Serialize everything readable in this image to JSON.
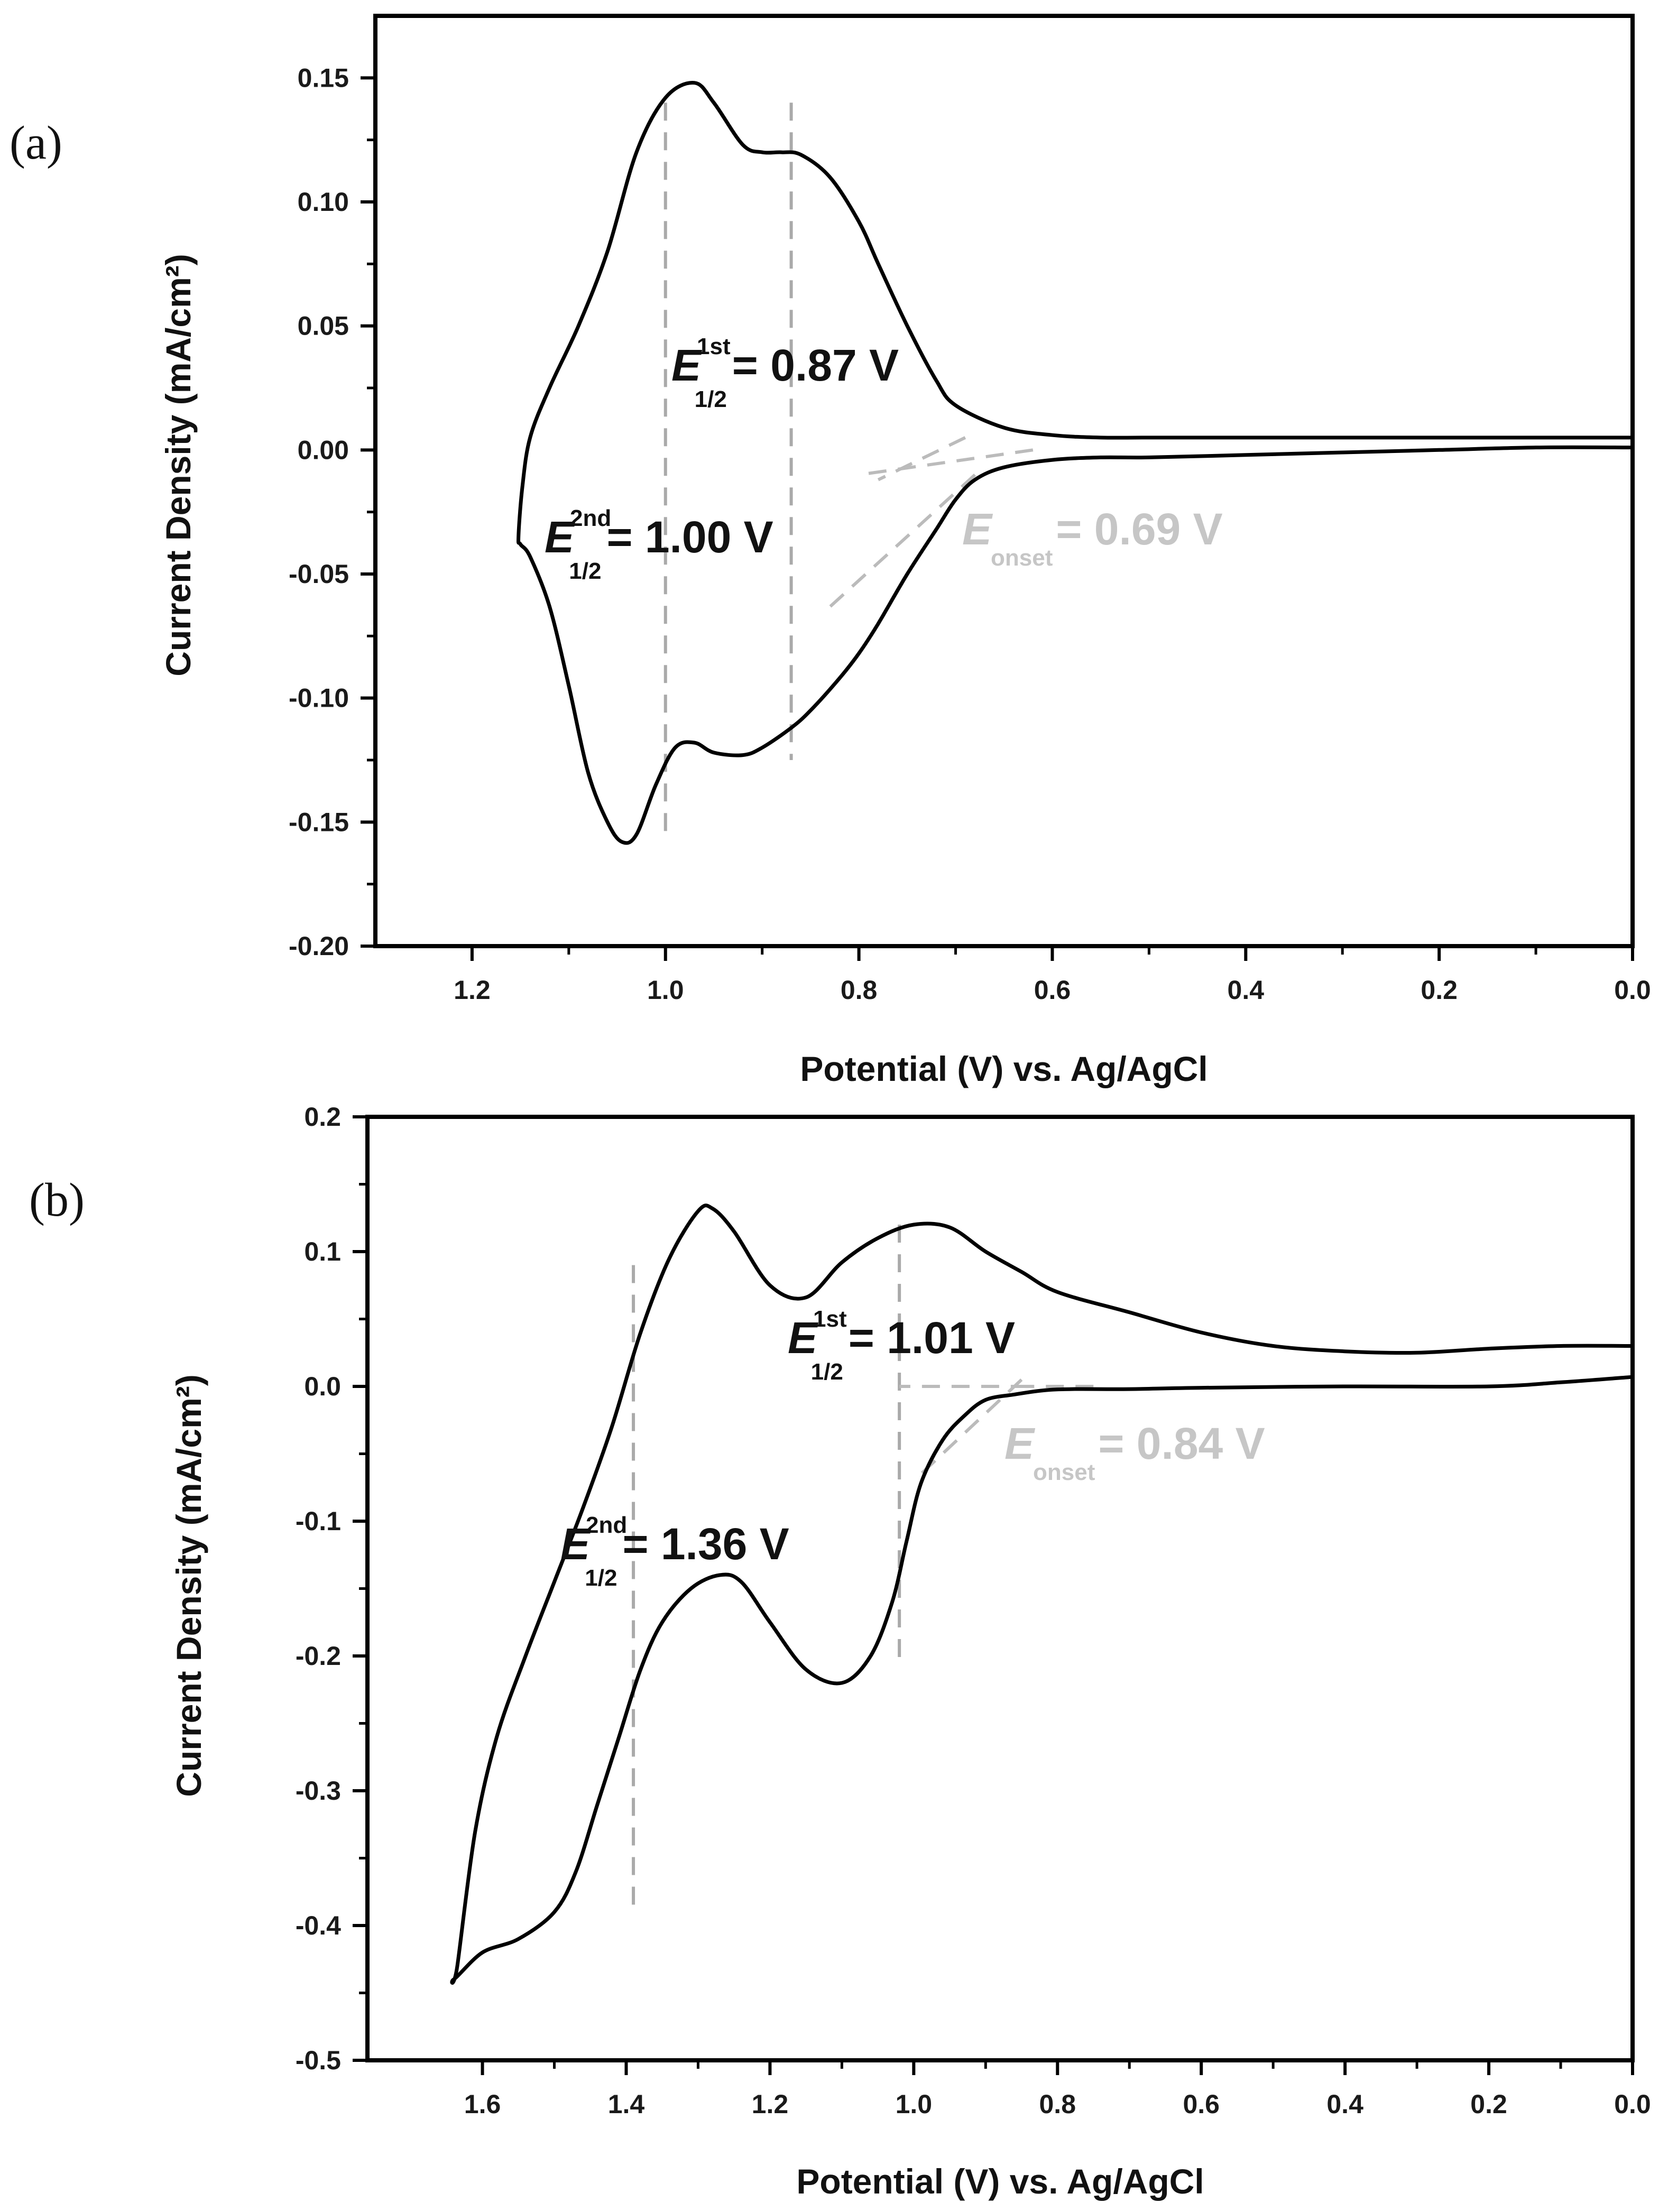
{
  "chart_data": [
    {
      "panel": "(a)",
      "type": "line",
      "xlabel": "Potential (V) vs. Ag/AgCl",
      "ylabel": "Current Density (mA/cm²)",
      "xlim": [
        1.3,
        0.0
      ],
      "ylim": [
        -0.2,
        0.175
      ],
      "xticks": [
        "1.2",
        "1.0",
        "0.8",
        "0.6",
        "0.4",
        "0.2",
        "0.0"
      ],
      "xtick_values": [
        1.2,
        1.0,
        0.8,
        0.6,
        0.4,
        0.2,
        0.0
      ],
      "yticks": [
        "0.15",
        "0.10",
        "0.05",
        "0.00",
        "-0.05",
        "-0.10",
        "-0.15",
        "-0.20"
      ],
      "ytick_values": [
        0.15,
        0.1,
        0.05,
        0.0,
        -0.05,
        -0.1,
        -0.15,
        -0.2
      ],
      "series": [
        {
          "x": [
            0.0,
            0.2,
            0.4,
            0.5,
            0.55,
            0.6,
            0.65,
            0.7,
            0.72,
            0.75,
            0.78,
            0.8,
            0.83,
            0.86,
            0.88,
            0.9,
            0.92,
            0.95,
            0.97,
            1.0,
            1.03,
            1.06,
            1.09,
            1.12,
            1.14,
            1.148,
            1.152,
            1.15,
            1.14,
            1.12,
            1.1,
            1.08,
            1.06,
            1.045,
            1.03,
            1.01,
            0.99,
            0.97,
            0.95,
            0.92,
            0.9,
            0.87,
            0.85,
            0.82,
            0.8,
            0.78,
            0.75,
            0.72,
            0.7,
            0.68,
            0.65,
            0.6,
            0.55,
            0.5,
            0.4,
            0.3,
            0.2,
            0.1,
            0.0
          ],
          "y": [
            0.005,
            0.005,
            0.005,
            0.005,
            0.005,
            0.006,
            0.009,
            0.018,
            0.028,
            0.05,
            0.075,
            0.092,
            0.11,
            0.119,
            0.12,
            0.12,
            0.123,
            0.14,
            0.148,
            0.142,
            0.12,
            0.08,
            0.05,
            0.025,
            0.005,
            -0.015,
            -0.035,
            -0.038,
            -0.043,
            -0.063,
            -0.095,
            -0.13,
            -0.15,
            -0.158,
            -0.155,
            -0.135,
            -0.12,
            -0.118,
            -0.122,
            -0.123,
            -0.12,
            -0.112,
            -0.105,
            -0.092,
            -0.082,
            -0.07,
            -0.05,
            -0.032,
            -0.02,
            -0.012,
            -0.007,
            -0.004,
            -0.003,
            -0.003,
            -0.002,
            -0.001,
            0.0,
            0.001,
            0.001
          ]
        }
      ],
      "annotations": {
        "first": {
          "sup": "1st",
          "sub": "1/2",
          "text": "= 0.87 V",
          "x": 0.87
        },
        "second": {
          "sup": "2nd",
          "sub": "1/2",
          "text": "= 1.00 V",
          "x": 1.0
        },
        "onset": {
          "sub": "onset",
          "text": "= 0.69 V",
          "x": 0.69
        }
      }
    },
    {
      "panel": "(b)",
      "type": "line",
      "xlabel": "Potential (V) vs. Ag/AgCl",
      "ylabel": "Current Density (mA/cm²)",
      "xlim": [
        1.76,
        0.0
      ],
      "ylim": [
        -0.5,
        0.2
      ],
      "xticks": [
        "1.6",
        "1.4",
        "1.2",
        "1.0",
        "0.8",
        "0.6",
        "0.4",
        "0.2",
        "0.0"
      ],
      "xtick_values": [
        1.6,
        1.4,
        1.2,
        1.0,
        0.8,
        0.6,
        0.4,
        0.2,
        0.0
      ],
      "yticks": [
        "0.2",
        "0.1",
        "0.0",
        "-0.1",
        "-0.2",
        "-0.3",
        "-0.4",
        "-0.5"
      ],
      "ytick_values": [
        0.2,
        0.1,
        0.0,
        -0.1,
        -0.2,
        -0.3,
        -0.4,
        -0.5
      ],
      "series": [
        {
          "x": [
            0.0,
            0.1,
            0.2,
            0.3,
            0.4,
            0.5,
            0.6,
            0.7,
            0.8,
            0.85,
            0.9,
            0.95,
            1.0,
            1.05,
            1.1,
            1.15,
            1.2,
            1.25,
            1.28,
            1.3,
            1.34,
            1.38,
            1.42,
            1.46,
            1.5,
            1.54,
            1.58,
            1.61,
            1.635,
            1.64,
            1.6,
            1.55,
            1.5,
            1.47,
            1.44,
            1.41,
            1.38,
            1.35,
            1.31,
            1.27,
            1.24,
            1.2,
            1.15,
            1.1,
            1.06,
            1.03,
            1.01,
            0.99,
            0.96,
            0.93,
            0.9,
            0.86,
            0.82,
            0.78,
            0.7,
            0.6,
            0.4,
            0.2,
            0.1,
            0.0
          ],
          "y": [
            0.03,
            0.03,
            0.028,
            0.025,
            0.026,
            0.03,
            0.04,
            0.055,
            0.07,
            0.085,
            0.1,
            0.118,
            0.12,
            0.11,
            0.092,
            0.066,
            0.075,
            0.115,
            0.132,
            0.13,
            0.095,
            0.04,
            -0.03,
            -0.09,
            -0.145,
            -0.2,
            -0.26,
            -0.33,
            -0.43,
            -0.44,
            -0.42,
            -0.41,
            -0.39,
            -0.36,
            -0.31,
            -0.26,
            -0.21,
            -0.175,
            -0.15,
            -0.14,
            -0.145,
            -0.175,
            -0.21,
            -0.22,
            -0.2,
            -0.16,
            -0.115,
            -0.072,
            -0.04,
            -0.022,
            -0.01,
            -0.006,
            -0.003,
            -0.002,
            -0.002,
            -0.001,
            0.0,
            0.0,
            0.003,
            0.007
          ]
        }
      ],
      "annotations": {
        "first": {
          "sup": "1st",
          "sub": "1/2",
          "text": "= 1.01 V",
          "x": 1.02
        },
        "second": {
          "sup": "2nd",
          "sub": "1/2",
          "text": "= 1.36 V",
          "x": 1.39
        },
        "onset": {
          "sub": "onset",
          "text": "= 0.84 V",
          "x": 0.84
        }
      }
    }
  ]
}
